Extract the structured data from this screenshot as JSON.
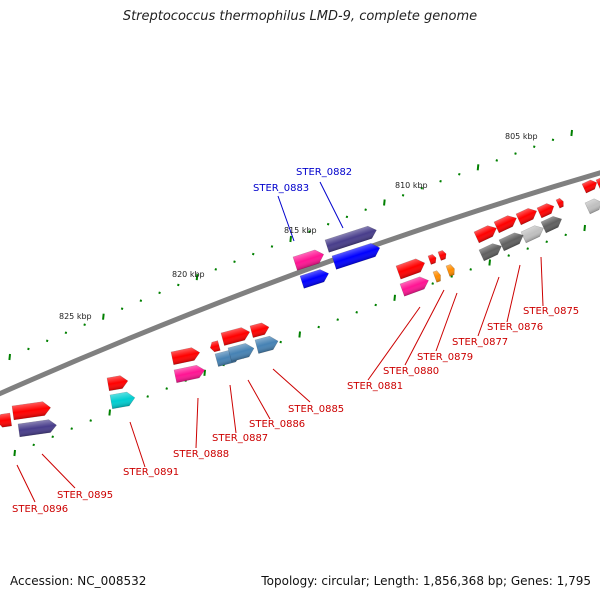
{
  "title": "Streptococcus thermophilus LMD-9, complete genome",
  "footer": {
    "accession": "Accession: NC_008532",
    "stats": "Topology: circular; Length: 1,856,368 bp; Genes: 1,795"
  },
  "scale_labels": [
    "805 kbp",
    "810 kbp",
    "815 kbp",
    "820 kbp",
    "825 kbp"
  ],
  "colors": {
    "backbone": "#808080",
    "forward_gene": "#ff0000",
    "highlight_label": "#0000cc",
    "normal_label": "#cc0000",
    "tick": "#008000"
  },
  "highlighted_genes": [
    "STER_0882",
    "STER_0883"
  ],
  "gene_labels": [
    "STER_0875",
    "STER_0876",
    "STER_0877",
    "STER_0879",
    "STER_0880",
    "STER_0881",
    "STER_0885",
    "STER_0886",
    "STER_0887",
    "STER_0888",
    "STER_0891",
    "STER_0895",
    "STER_0896",
    "STER_0882",
    "STER_0883"
  ]
}
